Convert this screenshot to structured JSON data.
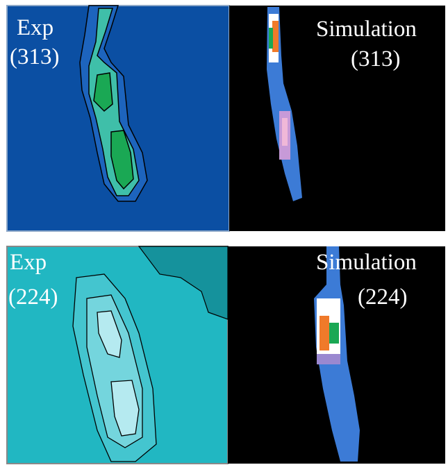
{
  "panels": [
    {
      "label": [
        "Exp",
        "(313)"
      ]
    },
    {
      "label": [
        "Simulation",
        "(313)"
      ]
    },
    {
      "label": [
        "Exp",
        "(224)"
      ]
    },
    {
      "label": [
        "Simulation",
        "(224)"
      ]
    }
  ]
}
